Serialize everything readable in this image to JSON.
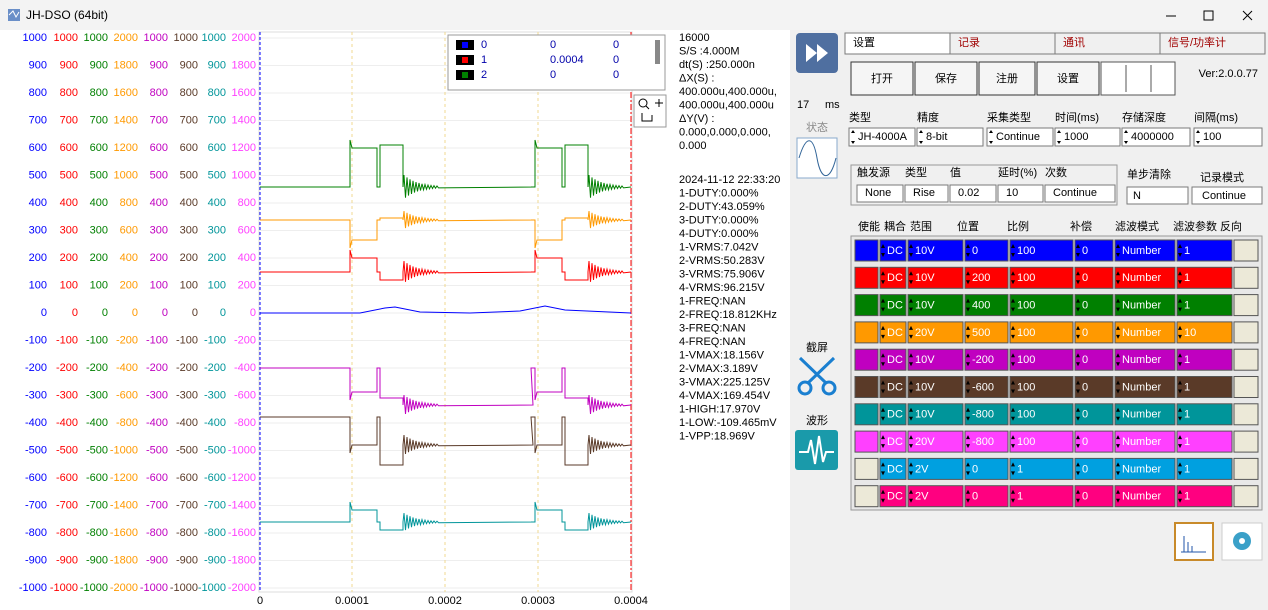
{
  "window": {
    "title": "JH-DSO (64bit)"
  },
  "scope": {
    "y_axes": [
      {
        "color": "#0000ff",
        "labels": [
          1000,
          900,
          800,
          700,
          600,
          500,
          400,
          300,
          200,
          100,
          0,
          -100,
          -200,
          -300,
          -400,
          -500,
          -600,
          -700,
          -800,
          -900,
          -1000
        ]
      },
      {
        "color": "#ff0000",
        "labels": [
          1000,
          900,
          800,
          700,
          600,
          500,
          400,
          300,
          200,
          100,
          0,
          -100,
          -200,
          -300,
          -400,
          -500,
          -600,
          -700,
          -800,
          -900,
          -1000
        ]
      },
      {
        "color": "#008000",
        "labels": [
          1000,
          900,
          800,
          700,
          600,
          500,
          400,
          300,
          200,
          100,
          0,
          -100,
          -200,
          -300,
          -400,
          -500,
          -600,
          -700,
          -800,
          -900,
          -1000
        ]
      },
      {
        "color": "#ff9900",
        "labels": [
          2000,
          1800,
          1600,
          1400,
          1200,
          1000,
          800,
          600,
          400,
          200,
          0,
          -200,
          -400,
          -600,
          -800,
          -1000,
          -1200,
          -1400,
          -1600,
          -1800,
          -2000
        ]
      },
      {
        "color": "#c000c0",
        "labels": [
          1000,
          900,
          800,
          700,
          600,
          500,
          400,
          300,
          200,
          100,
          0,
          -100,
          -200,
          -300,
          -400,
          -500,
          -600,
          -700,
          -800,
          -900,
          -1000
        ]
      },
      {
        "color": "#5a3a28",
        "labels": [
          1000,
          900,
          800,
          700,
          600,
          500,
          400,
          300,
          200,
          100,
          0,
          -100,
          -200,
          -300,
          -400,
          -500,
          -600,
          -700,
          -800,
          -900,
          -1000
        ]
      },
      {
        "color": "#00959a",
        "labels": [
          1000,
          900,
          800,
          700,
          600,
          500,
          400,
          300,
          200,
          100,
          0,
          -100,
          -200,
          -300,
          -400,
          -500,
          -600,
          -700,
          -800,
          -900,
          -1000
        ]
      },
      {
        "color": "#ff40ff",
        "labels": [
          2000,
          1800,
          1600,
          1400,
          1200,
          1000,
          800,
          600,
          400,
          200,
          0,
          -200,
          -400,
          -600,
          -800,
          -1000,
          -1200,
          -1400,
          -1600,
          -1800,
          -2000
        ]
      }
    ],
    "x_labels": [
      "0",
      "0.0001",
      "0.0002",
      "0.0003",
      "0.0004"
    ],
    "cursor_table": [
      [
        "0",
        "0",
        "0"
      ],
      [
        "1",
        "0.0004",
        "0"
      ],
      [
        "2",
        "0",
        "0"
      ]
    ]
  },
  "info": {
    "block1": [
      "16000",
      "S/S    :4.000M",
      "dt(S)   :250.000n",
      "ΔX(S) :",
      "400.000u,400.000u,",
      "400.000u,400.000u",
      "ΔY(V) :",
      "0.000,0.000,0.000,",
      "0.000"
    ],
    "block2": [
      "2024-11-12 22:33:20",
      "1-DUTY:0.000%",
      "2-DUTY:43.059%",
      "3-DUTY:0.000%",
      "4-DUTY:0.000%",
      "1-VRMS:7.042V",
      "2-VRMS:50.283V",
      "3-VRMS:75.906V",
      "4-VRMS:96.215V",
      "1-FREQ:NAN",
      "2-FREQ:18.812KHz",
      "3-FREQ:NAN",
      "4-FREQ:NAN",
      "1-VMAX:18.156V",
      "2-VMAX:3.189V",
      "3-VMAX:225.125V",
      "4-VMAX:169.454V",
      "1-HIGH:17.970V",
      "1-LOW:-109.465mV",
      "1-VPP:18.969V"
    ]
  },
  "side": {
    "latency": "17",
    "latency_unit": "ms",
    "status": "状态",
    "screenshot": "截屏",
    "waveform": "波形"
  },
  "settings": {
    "tabs": [
      "设置",
      "记录",
      "通讯",
      "信号/功率计"
    ],
    "buttons": [
      "打开",
      "保存",
      "注册",
      "设置"
    ],
    "version": "Ver:2.0.0.77",
    "acq_headers": [
      "类型",
      "精度",
      "采集类型",
      "时间(ms)",
      "存储深度",
      "间隔(ms)"
    ],
    "acq_values": [
      "JH-4000A",
      "8-bit",
      "Continue",
      "1000",
      "4000000",
      "100"
    ],
    "trig_headers": [
      "触发源",
      "类型",
      "值",
      "延时(%)",
      "次数"
    ],
    "trig_values": [
      "None",
      "Rise",
      "0.02",
      "10",
      "Continue"
    ],
    "single_clear": "单步清除",
    "single_clear_value": "N",
    "record_mode": "记录模式",
    "record_mode_value": "Continue",
    "channel_headers": [
      "使能",
      "耦合",
      "范围",
      "位置",
      "比例",
      "补偿",
      "滤波模式",
      "滤波参数",
      "反向"
    ],
    "channels": [
      {
        "color": "#0000ff",
        "cells": [
          "DC",
          "10V",
          "0",
          "100",
          "0",
          "Number",
          "1"
        ]
      },
      {
        "color": "#ff0000",
        "cells": [
          "DC",
          "10V",
          "200",
          "100",
          "0",
          "Number",
          "1"
        ]
      },
      {
        "color": "#008000",
        "cells": [
          "DC",
          "10V",
          "400",
          "100",
          "0",
          "Number",
          "1"
        ]
      },
      {
        "color": "#ff9900",
        "cells": [
          "DC",
          "20V",
          "500",
          "100",
          "0",
          "Number",
          "10"
        ]
      },
      {
        "color": "#c000c0",
        "cells": [
          "DC",
          "10V",
          "-200",
          "100",
          "0",
          "Number",
          "1"
        ]
      },
      {
        "color": "#5a3a28",
        "cells": [
          "DC",
          "10V",
          "-600",
          "100",
          "0",
          "Number",
          "1"
        ]
      },
      {
        "color": "#00959a",
        "cells": [
          "DC",
          "10V",
          "-800",
          "100",
          "0",
          "Number",
          "1"
        ]
      },
      {
        "color": "#ff40ff",
        "cells": [
          "DC",
          "20V",
          "-800",
          "100",
          "0",
          "Number",
          "1"
        ]
      },
      {
        "color": "#00a0e0",
        "cells": [
          "DC",
          "2V",
          "0",
          "1",
          "0",
          "Number",
          "1"
        ]
      },
      {
        "color": "#ff0080",
        "cells": [
          "DC",
          "2V",
          "0",
          "1",
          "0",
          "Number",
          "1"
        ]
      }
    ]
  }
}
